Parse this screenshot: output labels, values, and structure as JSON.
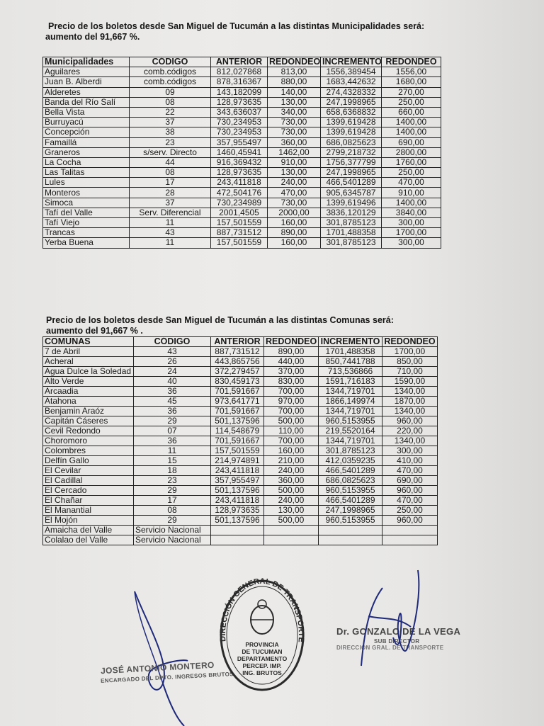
{
  "municipalidades": {
    "title_line1": "Precio de los boletos desde San Miguel de Tucumán a las distintas  Municipalidades será:",
    "title_line2": "aumento del 91,667 %.",
    "headers": [
      "Municipalidades",
      "CÓDIGO",
      "ANTERIOR",
      "REDONDEO",
      "INCREMENTO",
      "REDONDEO"
    ],
    "rows": [
      [
        "Aguilares",
        "comb.códigos",
        "812,027868",
        "813,00",
        "1556,389454",
        "1556,00"
      ],
      [
        "Juan B. Alberdi",
        "comb.códigos",
        "878,316367",
        "880,00",
        "1683,442632",
        "1680,00"
      ],
      [
        "Alderetes",
        "09",
        "143,182099",
        "140,00",
        "274,4328332",
        "270,00"
      ],
      [
        "Banda del Río Salí",
        "08",
        "128,973635",
        "130,00",
        "247,1998965",
        "250,00"
      ],
      [
        "Bella Vista",
        "22",
        "343,636037",
        "340,00",
        "658,6368832",
        "660,00"
      ],
      [
        "Burruyacú",
        "37",
        "730,234953",
        "730,00",
        "1399,619428",
        "1400,00"
      ],
      [
        "Concepción",
        "38",
        "730,234953",
        "730,00",
        "1399,619428",
        "1400,00"
      ],
      [
        "Famaillá",
        "23",
        "357,955497",
        "360,00",
        "686,0825623",
        "690,00"
      ],
      [
        "Graneros",
        "s/serv. Directo",
        "1460,45941",
        "1462,00",
        "2799,218732",
        "2800,00"
      ],
      [
        "La Cocha",
        "44",
        "916,369432",
        "910,00",
        "1756,377799",
        "1760,00"
      ],
      [
        "Las Talitas",
        "08",
        "128,973635",
        "130,00",
        "247,1998965",
        "250,00"
      ],
      [
        "Lules",
        "17",
        "243,411818",
        "240,00",
        "466,5401289",
        "470,00"
      ],
      [
        "Monteros",
        "28",
        "472,504176",
        "470,00",
        "905,6345787",
        "910,00"
      ],
      [
        "Simoca",
        "37",
        "730,234989",
        "730,00",
        "1399,619496",
        "1400,00"
      ],
      [
        "Tafí del Valle",
        "Serv. Diferencial",
        "2001,4505",
        "2000,00",
        "3836,120129",
        "3840,00"
      ],
      [
        "Tafí Viejo",
        "11",
        "157,501559",
        "160,00",
        "301,8785123",
        "300,00"
      ],
      [
        "Trancas",
        "43",
        "887,731512",
        "890,00",
        "1701,488358",
        "1700,00"
      ],
      [
        "Yerba Buena",
        "11",
        "157,501559",
        "160,00",
        "301,8785123",
        "300,00"
      ]
    ]
  },
  "comunas": {
    "title_line1": "Precio de los boletos desde San Miguel de Tucumán a las distintas Comunas será:",
    "title_line2": "aumento del 91,667 % .",
    "headers": [
      "COMUNAS",
      "CÓDIGO",
      "ANTERIOR",
      "REDONDEO",
      "INCREMENTO",
      "REDONDEO"
    ],
    "rows": [
      [
        "7 de Abril",
        "43",
        "887,731512",
        "890,00",
        "1701,488358",
        "1700,00"
      ],
      [
        "Acheral",
        "26",
        "443,865756",
        "440,00",
        "850,7441788",
        "850,00"
      ],
      [
        "Agua Dulce la Soledad",
        "24",
        "372,279457",
        "370,00",
        "713,536866",
        "710,00"
      ],
      [
        "Alto Verde",
        "40",
        "830,459173",
        "830,00",
        "1591,716183",
        "1590,00"
      ],
      [
        "Arcaadia",
        "36",
        "701,591667",
        "700,00",
        "1344,719701",
        "1340,00"
      ],
      [
        "Atahona",
        "45",
        "973,641771",
        "970,00",
        "1866,149974",
        "1870,00"
      ],
      [
        "Benjamin Araóz",
        "36",
        "701,591667",
        "700,00",
        "1344,719701",
        "1340,00"
      ],
      [
        "Capitán Cáseres",
        "29",
        "501,137596",
        "500,00",
        "960,5153955",
        "960,00"
      ],
      [
        "Cevil Redondo",
        "07",
        "114,548679",
        "110,00",
        "219,5520164",
        "220,00"
      ],
      [
        "Choromoro",
        "36",
        "701,591667",
        "700,00",
        "1344,719701",
        "1340,00"
      ],
      [
        "Colombres",
        "11",
        "157,501559",
        "160,00",
        "301,8785123",
        "300,00"
      ],
      [
        "Delfín Gallo",
        "15",
        "214,974891",
        "210,00",
        "412,0359235",
        "410,00"
      ],
      [
        "El Cevilar",
        "18",
        "243,411818",
        "240,00",
        "466,5401289",
        "470,00"
      ],
      [
        "El Cadillal",
        "23",
        "357,955497",
        "360,00",
        "686,0825623",
        "690,00"
      ],
      [
        "El Cercado",
        "29",
        "501,137596",
        "500,00",
        "960,5153955",
        "960,00"
      ],
      [
        "El Chañar",
        "17",
        "243,411818",
        "240,00",
        "466,5401289",
        "470,00"
      ],
      [
        "El Manantial",
        "08",
        "128,973635",
        "130,00",
        "247,1998965",
        "250,00"
      ],
      [
        "El Mojón",
        "29",
        "501,137596",
        "500,00",
        "960,5153955",
        "960,00"
      ],
      [
        "Amaicha del Valle",
        "Servicio Nacional",
        "",
        "",
        "",
        ""
      ],
      [
        "Colalao del Valle",
        "Servicio Nacional",
        "",
        "",
        "",
        ""
      ]
    ]
  },
  "signatures": {
    "left_name": "JOSÉ ANTONIO MONTERO",
    "left_role": "ENCARGADO DEL DPTO. INGRESOS BRUTOS",
    "stamp_ring": "DIRECCIÓN GENERAL DE TRANSPORTE",
    "stamp_center": [
      "PROVINCIA",
      "DE TUCUMAN",
      "DEPARTAMENTO",
      "PERCEP. IMP.",
      "ING. BRUTOS"
    ],
    "right_name": "Dr. GONZALO DE LA VEGA",
    "right_role": "SUB DIRECTOR",
    "right_dept": "DIRECCIÓN GRAL. DE TRANSPORTE"
  },
  "colors": {
    "ink": "#1a1a1a",
    "signature_ink": "#1f2a7a",
    "stamp_ink": "#2a2a2a",
    "paper": "#e9e8e6"
  }
}
